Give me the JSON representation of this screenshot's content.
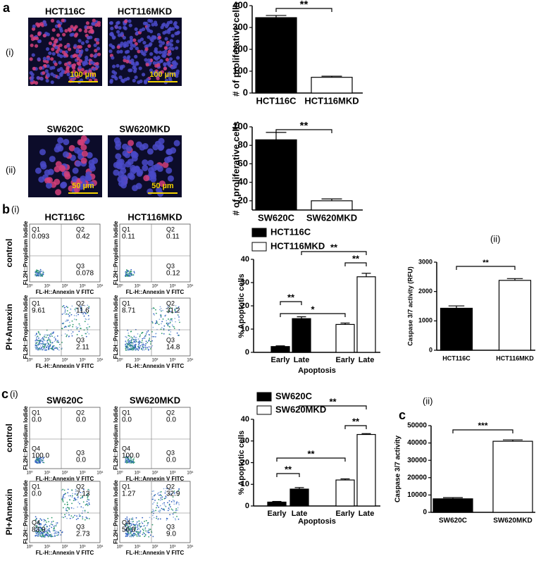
{
  "labels": {
    "a": "a",
    "a_i": "(i)",
    "a_ii": "(ii)",
    "b": "b",
    "b_i": "(i)",
    "b_ii": "(ii)",
    "c": "c",
    "c_i": "(i)",
    "c2": "c",
    "c_ii": "(ii)"
  },
  "images": [
    {
      "title": "HCT116C",
      "scale": "100 µm"
    },
    {
      "title": "HCT116MKD",
      "scale": "100 µm"
    },
    {
      "title": "SW620C",
      "scale": "50 µm"
    },
    {
      "title": "SW620MKD",
      "scale": "50 µm"
    }
  ],
  "flow": [
    {
      "columns": [
        "HCT116C",
        "HCT116MKD"
      ],
      "rows": [
        "control",
        "PI+Annexin"
      ],
      "y_axis": "FL2H::Propidium Iodide",
      "x_axis": "FL-H::Annexin V FITC",
      "ticks": [
        "10⁰",
        "10¹",
        "10²",
        "10³",
        "10⁴"
      ],
      "plots": [
        [
          {
            "name": "Q1",
            "value": "0.093"
          },
          {
            "name": "Q2",
            "value": "0.42"
          },
          {
            "name": "Q3",
            "value": "0.078"
          }
        ],
        [
          {
            "name": "Q1",
            "value": "0.11"
          },
          {
            "name": "Q2",
            "value": "0.11"
          },
          {
            "name": "Q3",
            "value": "0.12"
          }
        ],
        [
          {
            "name": "Q1",
            "value": "9.61"
          },
          {
            "name": "Q2",
            "value": "11.6"
          },
          {
            "name": "Q3",
            "value": "2.11"
          }
        ],
        [
          {
            "name": "Q1",
            "value": "8.71"
          },
          {
            "name": "Q2",
            "value": "31.2"
          },
          {
            "name": "Q3",
            "value": "14.8"
          }
        ]
      ]
    },
    {
      "columns": [
        "SW620C",
        "SW620MKD"
      ],
      "rows": [
        "control",
        "PI+Annexin"
      ],
      "y_axis": "FL2H::Propidium Iodide",
      "x_axis": "FL-H::Annexin V FITC",
      "ticks": [
        "10⁰",
        "10¹",
        "10²",
        "10³",
        "10⁴"
      ],
      "plots": [
        [
          {
            "name": "Q1",
            "value": "0.0"
          },
          {
            "name": "Q2",
            "value": "0.0"
          },
          {
            "name": "Q3",
            "value": "0.0"
          },
          {
            "name": "Q4",
            "value": "100.0"
          }
        ],
        [
          {
            "name": "Q1",
            "value": "0.0"
          },
          {
            "name": "Q2",
            "value": "0.0"
          },
          {
            "name": "Q3",
            "value": "0.0"
          },
          {
            "name": "Q4",
            "value": "100.0"
          }
        ],
        [
          {
            "name": "Q1",
            "value": "0.0"
          },
          {
            "name": "Q2",
            "value": "7.13"
          },
          {
            "name": "Q3",
            "value": "2.73"
          },
          {
            "name": "Q4",
            "value": "83.9"
          }
        ],
        [
          {
            "name": "Q1",
            "value": "1.27"
          },
          {
            "name": "Q2",
            "value": "32.9"
          },
          {
            "name": "Q3",
            "value": "9.0"
          },
          {
            "name": "Q4",
            "value": "56.8"
          }
        ]
      ]
    }
  ],
  "chart_data": [
    {
      "type": "bar",
      "ylabel": "# of proliferative cells",
      "categories": [
        "HCT116C",
        "HCT116MKD"
      ],
      "values": [
        345,
        72
      ],
      "errors": [
        10,
        5
      ],
      "colors": [
        "#000000",
        "#ffffff"
      ],
      "ylim": [
        0,
        400
      ],
      "yticks": [
        0,
        100,
        200,
        300,
        400
      ],
      "annotations": [
        "**"
      ]
    },
    {
      "type": "bar",
      "ylabel": "# of proliferative cells",
      "categories": [
        "SW620C",
        "SW620MKD"
      ],
      "values": [
        86,
        20
      ],
      "errors": [
        8,
        2
      ],
      "colors": [
        "#000000",
        "#ffffff"
      ],
      "ylim": [
        10,
        100
      ],
      "yticks": [
        20,
        40,
        60,
        80,
        100
      ],
      "annotations": [
        "**"
      ]
    },
    {
      "type": "grouped_bar",
      "ylabel": "% Apoptotic cells",
      "xlabel": "Apoptosis",
      "categories": [
        "Early",
        "Late"
      ],
      "series": [
        {
          "name": "HCT116C",
          "color": "#000000",
          "values": [
            2.5,
            14.5
          ],
          "errors": [
            0.3,
            0.8
          ]
        },
        {
          "name": "HCT116MKD",
          "color": "#ffffff",
          "values": [
            12,
            32.5
          ],
          "errors": [
            0.6,
            1.5
          ]
        }
      ],
      "ylim": [
        0,
        40
      ],
      "yticks": [
        0,
        10,
        20,
        30,
        40
      ],
      "annotations": [
        "**",
        "*",
        "**",
        "**"
      ]
    },
    {
      "type": "bar",
      "ylabel": "Caspase 3/7 activity (RFU)",
      "categories": [
        "HCT116C",
        "HCT116MKD"
      ],
      "values": [
        1430,
        2380
      ],
      "errors": [
        80,
        60
      ],
      "colors": [
        "#000000",
        "#ffffff"
      ],
      "ylim": [
        0,
        3000
      ],
      "yticks": [
        0,
        1000,
        2000,
        3000
      ],
      "annotations": [
        "**"
      ]
    },
    {
      "type": "grouped_bar",
      "ylabel": "% Apoptotic cells",
      "xlabel": "Apoptosis",
      "categories": [
        "Early",
        "Late"
      ],
      "series": [
        {
          "name": "SW620C",
          "color": "#000000",
          "values": [
            1.8,
            7.8
          ],
          "errors": [
            0.3,
            0.7
          ]
        },
        {
          "name": "SW620MKD",
          "color": "#ffffff",
          "values": [
            12,
            33
          ],
          "errors": [
            0.5,
            0.4
          ]
        }
      ],
      "ylim": [
        0,
        40
      ],
      "yticks": [
        0,
        10,
        20,
        30,
        40
      ],
      "annotations": [
        "**",
        "**",
        "**",
        "**"
      ]
    },
    {
      "type": "bar",
      "ylabel": "Caspase 3/7 activity",
      "categories": [
        "SW620C",
        "SW620MKD"
      ],
      "values": [
        7800,
        41000
      ],
      "errors": [
        700,
        800
      ],
      "colors": [
        "#000000",
        "#ffffff"
      ],
      "ylim": [
        0,
        50000
      ],
      "yticks": [
        0,
        10000,
        20000,
        30000,
        40000,
        50000
      ],
      "annotations": [
        "***"
      ]
    }
  ]
}
